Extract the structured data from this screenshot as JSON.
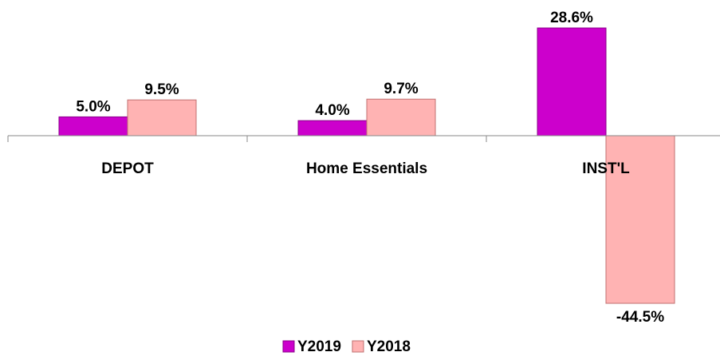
{
  "chart_data": {
    "type": "bar",
    "categories": [
      "DEPOT",
      "Home Essentials",
      "INST'L"
    ],
    "series": [
      {
        "name": "Y2019",
        "color": "#cc00cc",
        "values": [
          5.0,
          4.0,
          28.6
        ],
        "value_labels": [
          "5.0%",
          "4.0%",
          "28.6%"
        ]
      },
      {
        "name": "Y2018",
        "color": "#ffb3b3",
        "values": [
          9.5,
          9.7,
          -44.5
        ],
        "value_labels": [
          "9.5%",
          "9.7%",
          "-44.5%"
        ]
      }
    ],
    "legend": "bottom"
  }
}
